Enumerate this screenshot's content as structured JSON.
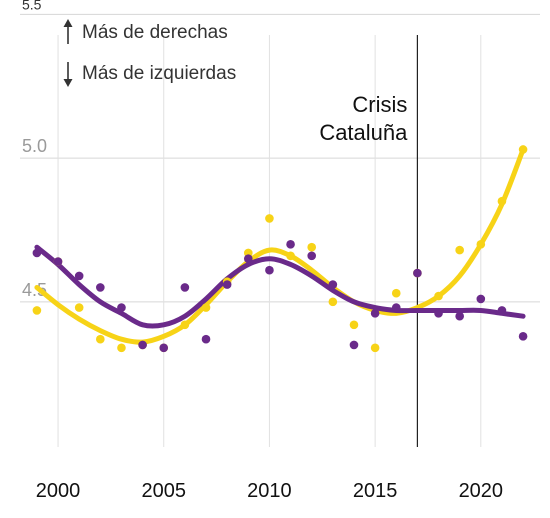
{
  "chart_data": {
    "type": "scatter",
    "y_ticks": [
      "5.5",
      "5.0",
      "4.5"
    ],
    "x_ticks": [
      "2000",
      "2005",
      "2010",
      "2015",
      "2020"
    ],
    "xlim": [
      1998.2,
      2022.8
    ],
    "ylim": [
      3.995,
      5.55
    ],
    "y_tick_values": [
      5.5,
      5.0,
      4.5
    ],
    "x_tick_values": [
      2000,
      2005,
      2010,
      2015,
      2020
    ],
    "grid": true,
    "legend": {
      "up_label": "Más de derechas",
      "down_label": "Más de izquierdas"
    },
    "annotation": {
      "x": 2017,
      "line1": "Crisis",
      "line2": "Cataluña"
    },
    "series": [
      {
        "color": "#f7d317",
        "points": [
          [
            1999,
            4.47
          ],
          [
            2000,
            4.64
          ],
          [
            2001,
            4.48
          ],
          [
            2002,
            4.37
          ],
          [
            2003,
            4.34
          ],
          [
            2004,
            4.35
          ],
          [
            2005,
            4.34
          ],
          [
            2006,
            4.42
          ],
          [
            2007,
            4.48
          ],
          [
            2008,
            4.57
          ],
          [
            2009,
            4.67
          ],
          [
            2010,
            4.79
          ],
          [
            2011,
            4.66
          ],
          [
            2012,
            4.69
          ],
          [
            2013,
            4.5
          ],
          [
            2014,
            4.42
          ],
          [
            2015,
            4.34
          ],
          [
            2016,
            4.53
          ],
          [
            2017,
            4.6
          ],
          [
            2018,
            4.52
          ],
          [
            2019,
            4.68
          ],
          [
            2020,
            4.7
          ],
          [
            2021,
            4.85
          ],
          [
            2022,
            5.03
          ]
        ],
        "trend": [
          [
            1999,
            4.55
          ],
          [
            2000,
            4.49
          ],
          [
            2001,
            4.44
          ],
          [
            2002,
            4.4
          ],
          [
            2003,
            4.37
          ],
          [
            2004,
            4.36
          ],
          [
            2005,
            4.38
          ],
          [
            2006,
            4.42
          ],
          [
            2007,
            4.49
          ],
          [
            2008,
            4.57
          ],
          [
            2009,
            4.64
          ],
          [
            2010,
            4.68
          ],
          [
            2011,
            4.66
          ],
          [
            2012,
            4.61
          ],
          [
            2013,
            4.55
          ],
          [
            2014,
            4.5
          ],
          [
            2015,
            4.47
          ],
          [
            2016,
            4.46
          ],
          [
            2017,
            4.48
          ],
          [
            2018,
            4.52
          ],
          [
            2019,
            4.59
          ],
          [
            2020,
            4.7
          ],
          [
            2021,
            4.84
          ],
          [
            2022,
            5.03
          ]
        ]
      },
      {
        "color": "#6a2a8a",
        "points": [
          [
            1999,
            4.67
          ],
          [
            2000,
            4.64
          ],
          [
            2001,
            4.59
          ],
          [
            2002,
            4.55
          ],
          [
            2003,
            4.48
          ],
          [
            2004,
            4.35
          ],
          [
            2005,
            4.34
          ],
          [
            2006,
            4.55
          ],
          [
            2007,
            4.37
          ],
          [
            2008,
            4.56
          ],
          [
            2009,
            4.65
          ],
          [
            2010,
            4.61
          ],
          [
            2011,
            4.7
          ],
          [
            2012,
            4.66
          ],
          [
            2013,
            4.56
          ],
          [
            2014,
            4.35
          ],
          [
            2015,
            4.46
          ],
          [
            2016,
            4.48
          ],
          [
            2017,
            4.6
          ],
          [
            2018,
            4.46
          ],
          [
            2019,
            4.45
          ],
          [
            2020,
            4.51
          ],
          [
            2021,
            4.47
          ],
          [
            2022,
            4.38
          ]
        ],
        "trend": [
          [
            1999,
            4.69
          ],
          [
            2000,
            4.63
          ],
          [
            2001,
            4.56
          ],
          [
            2002,
            4.5
          ],
          [
            2003,
            4.46
          ],
          [
            2004,
            4.42
          ],
          [
            2005,
            4.42
          ],
          [
            2006,
            4.45
          ],
          [
            2007,
            4.51
          ],
          [
            2008,
            4.58
          ],
          [
            2009,
            4.63
          ],
          [
            2010,
            4.65
          ],
          [
            2011,
            4.63
          ],
          [
            2012,
            4.59
          ],
          [
            2013,
            4.54
          ],
          [
            2014,
            4.5
          ],
          [
            2015,
            4.48
          ],
          [
            2016,
            4.47
          ],
          [
            2017,
            4.47
          ],
          [
            2018,
            4.47
          ],
          [
            2019,
            4.47
          ],
          [
            2020,
            4.47
          ],
          [
            2021,
            4.46
          ],
          [
            2022,
            4.45
          ]
        ]
      }
    ]
  }
}
